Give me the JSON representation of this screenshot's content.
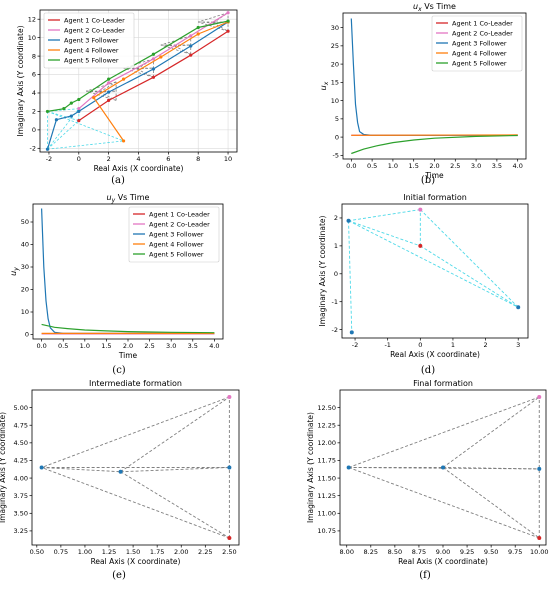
{
  "legend_labels": [
    "Agent 1 Co-Leader",
    "Agent 2 Co-Leader",
    "Agent 3 Follower",
    "Agent 4 Follower",
    "Agent 5 Follower"
  ],
  "colors": {
    "agent1": "#d62728",
    "agent2": "#e377c2",
    "agent3": "#1f77b4",
    "agent4": "#ff7f0e",
    "agent5": "#2ca02c",
    "formation": "#4dd9e8",
    "dash": "#7f7f7f",
    "spine": "#000000"
  },
  "chart_data": [
    {
      "id": "a",
      "caption": "(a)",
      "type": "line",
      "title": "",
      "xlabel": "Real Axis (X coordinate)",
      "ylabel": "Imaginary Axis (Y coordinate)",
      "xlim": [
        -2.6,
        10.6
      ],
      "ylim": [
        -2.4,
        13
      ],
      "xticks": [
        -2,
        0,
        2,
        4,
        6,
        8,
        10
      ],
      "yticks": [
        -2,
        0,
        2,
        4,
        6,
        8,
        10,
        12
      ],
      "grid": true,
      "legend_position": "top-left",
      "series": [
        {
          "name": "Agent 1 Co-Leader",
          "color_key": "agent1",
          "points": [
            [
              0,
              1
            ],
            [
              2,
              3.2
            ],
            [
              5,
              5.7
            ],
            [
              7.5,
              8.1
            ],
            [
              10,
              10.7
            ]
          ]
        },
        {
          "name": "Agent 2 Co-Leader",
          "color_key": "agent2",
          "points": [
            [
              0,
              2.3
            ],
            [
              2,
              5.1
            ],
            [
              5,
              7.7
            ],
            [
              7.5,
              10.2
            ],
            [
              10,
              12.7
            ]
          ]
        },
        {
          "name": "Agent 3 Follower",
          "color_key": "agent3",
          "points": [
            [
              -2.1,
              -2.1
            ],
            [
              -1.5,
              1.1
            ],
            [
              -0.5,
              1.5
            ],
            [
              0,
              2
            ],
            [
              2,
              4.1
            ],
            [
              5,
              6.6
            ],
            [
              7.5,
              9.1
            ],
            [
              10,
              11.7
            ]
          ]
        },
        {
          "name": "Agent 4 Follower",
          "color_key": "agent4",
          "points": [
            [
              3,
              -1.2
            ],
            [
              1,
              3.5
            ],
            [
              3,
              5.5
            ],
            [
              5.5,
              7.9
            ],
            [
              8,
              10.4
            ],
            [
              10,
              11.7
            ]
          ]
        },
        {
          "name": "Agent 5 Follower",
          "color_key": "agent5",
          "points": [
            [
              -2.1,
              2
            ],
            [
              -1,
              2.3
            ],
            [
              -0.5,
              2.9
            ],
            [
              0,
              3.3
            ],
            [
              2,
              5.5
            ],
            [
              5,
              8.2
            ],
            [
              8,
              11.1
            ],
            [
              10,
              11.8
            ]
          ]
        }
      ],
      "formations": [
        {
          "style": "cyan",
          "points": [
            [
              0,
              1
            ],
            [
              0,
              2.3
            ],
            [
              -2.1,
              2
            ],
            [
              -2.1,
              -2.1
            ],
            [
              3,
              -1.2
            ]
          ]
        },
        {
          "style": "dash",
          "points": [
            [
              2.5,
              3.2
            ],
            [
              2.5,
              5.2
            ],
            [
              0.5,
              4.2
            ],
            [
              1.4,
              4.1
            ],
            [
              2.5,
              4.2
            ]
          ]
        },
        {
          "style": "dash",
          "points": [
            [
              5,
              5.7
            ],
            [
              5,
              7.7
            ],
            [
              3,
              6.7
            ],
            [
              3.9,
              6.6
            ],
            [
              5,
              6.7
            ]
          ]
        },
        {
          "style": "dash",
          "points": [
            [
              7.5,
              8.2
            ],
            [
              7.5,
              10.2
            ],
            [
              5.5,
              9.2
            ],
            [
              6.4,
              9.1
            ],
            [
              7.5,
              9.2
            ]
          ]
        },
        {
          "style": "dash",
          "points": [
            [
              10,
              10.7
            ],
            [
              10,
              12.7
            ],
            [
              8,
              11.7
            ],
            [
              9,
              11.6
            ],
            [
              10,
              11.7
            ]
          ]
        }
      ]
    },
    {
      "id": "b",
      "caption": "(b)",
      "type": "line",
      "title": "ux Vs Time",
      "title_main": "u",
      "title_sub": "x",
      "title_rest": " Vs Time",
      "ylabel_main": "u",
      "ylabel_sub": "x",
      "xlabel": "Time",
      "ylabel": "ux",
      "xlim": [
        -0.2,
        4.2
      ],
      "ylim": [
        -6,
        34
      ],
      "xticks": [
        0.0,
        0.5,
        1.0,
        1.5,
        2.0,
        2.5,
        3.0,
        3.5,
        4.0
      ],
      "yticks": [
        -5,
        0,
        5,
        10,
        15,
        20,
        25,
        30
      ],
      "grid": false,
      "legend_position": "top-right",
      "series": [
        {
          "name": "Agent 1 Co-Leader",
          "color_key": "agent1",
          "points": [
            [
              0,
              0.5
            ],
            [
              4,
              0.5
            ]
          ]
        },
        {
          "name": "Agent 2 Co-Leader",
          "color_key": "agent2",
          "points": [
            [
              0,
              0.5
            ],
            [
              4,
              0.5
            ]
          ]
        },
        {
          "name": "Agent 3 Follower",
          "color_key": "agent3",
          "points": [
            [
              0,
              32.5
            ],
            [
              0.05,
              20
            ],
            [
              0.1,
              9
            ],
            [
              0.15,
              4
            ],
            [
              0.2,
              1.5
            ],
            [
              0.3,
              0.7
            ],
            [
              0.5,
              0.5
            ],
            [
              4,
              0.5
            ]
          ]
        },
        {
          "name": "Agent 4 Follower",
          "color_key": "agent4",
          "points": [
            [
              0,
              0.5
            ],
            [
              4,
              0.6
            ]
          ]
        },
        {
          "name": "Agent 5 Follower",
          "color_key": "agent5",
          "points": [
            [
              0,
              -4.5
            ],
            [
              0.3,
              -3.3
            ],
            [
              0.6,
              -2.4
            ],
            [
              1,
              -1.5
            ],
            [
              1.5,
              -0.8
            ],
            [
              2,
              -0.3
            ],
            [
              3,
              0.2
            ],
            [
              4,
              0.45
            ]
          ]
        }
      ]
    },
    {
      "id": "c",
      "caption": "(c)",
      "type": "line",
      "title": "uy Vs Time",
      "title_main": "u",
      "title_sub": "y",
      "title_rest": " Vs Time",
      "ylabel_main": "u",
      "ylabel_sub": "y",
      "xlabel": "Time",
      "ylabel": "uy",
      "xlim": [
        -0.2,
        4.2
      ],
      "ylim": [
        -2,
        58
      ],
      "xticks": [
        0.0,
        0.5,
        1.0,
        1.5,
        2.0,
        2.5,
        3.0,
        3.5,
        4.0
      ],
      "yticks": [
        0,
        10,
        20,
        30,
        40,
        50
      ],
      "grid": false,
      "legend_position": "top-right",
      "series": [
        {
          "name": "Agent 1 Co-Leader",
          "color_key": "agent1",
          "points": [
            [
              0,
              0.3
            ],
            [
              4,
              0.3
            ]
          ]
        },
        {
          "name": "Agent 2 Co-Leader",
          "color_key": "agent2",
          "points": [
            [
              0,
              0.3
            ],
            [
              4,
              0.3
            ]
          ]
        },
        {
          "name": "Agent 3 Follower",
          "color_key": "agent3",
          "points": [
            [
              0,
              56
            ],
            [
              0.05,
              30
            ],
            [
              0.1,
              15
            ],
            [
              0.15,
              7
            ],
            [
              0.2,
              3
            ],
            [
              0.3,
              1
            ],
            [
              0.5,
              0.5
            ],
            [
              4,
              0.5
            ]
          ]
        },
        {
          "name": "Agent 4 Follower",
          "color_key": "agent4",
          "points": [
            [
              0,
              0.5
            ],
            [
              4,
              0.5
            ]
          ]
        },
        {
          "name": "Agent 5 Follower",
          "color_key": "agent5",
          "points": [
            [
              0,
              4.5
            ],
            [
              0.3,
              3.2
            ],
            [
              0.6,
              2.6
            ],
            [
              1,
              2
            ],
            [
              1.5,
              1.6
            ],
            [
              2,
              1.3
            ],
            [
              3,
              1
            ],
            [
              4,
              0.8
            ]
          ]
        }
      ]
    },
    {
      "id": "d",
      "caption": "(d)",
      "type": "scatter",
      "title": "Initial formation",
      "xlabel": "Real Axis (X coordinate)",
      "ylabel": "Imaginary Axis (Y coordinate)",
      "xlim": [
        -2.4,
        3.3
      ],
      "ylim": [
        -2.3,
        2.5
      ],
      "xticks": [
        -2,
        -1,
        0,
        1,
        2,
        3
      ],
      "yticks": [
        -2,
        -1,
        0,
        1,
        2
      ],
      "grid": false,
      "edge_style": "cyan",
      "nodes": [
        {
          "x": 0,
          "y": 1,
          "color_key": "agent1"
        },
        {
          "x": 0,
          "y": 2.3,
          "color_key": "agent2"
        },
        {
          "x": -2.1,
          "y": -2.1,
          "color_key": "agent3"
        },
        {
          "x": 3,
          "y": -1.2,
          "color_key": "agent3"
        },
        {
          "x": -2.2,
          "y": 1.9,
          "color_key": "agent3"
        }
      ],
      "edges": [
        [
          0,
          1
        ],
        [
          1,
          4
        ],
        [
          4,
          0
        ],
        [
          4,
          2
        ],
        [
          4,
          3
        ],
        [
          1,
          3
        ],
        [
          0,
          3
        ]
      ]
    },
    {
      "id": "e",
      "caption": "(e)",
      "type": "scatter",
      "title": "Intermediate formation",
      "xlabel": "Real Axis (X coordinate)",
      "ylabel": "Imaginary Axis (Y coordinate)",
      "xlim": [
        0.45,
        2.6
      ],
      "ylim": [
        3.05,
        5.25
      ],
      "xticks": [
        0.5,
        0.75,
        1.0,
        1.25,
        1.5,
        1.75,
        2.0,
        2.25,
        2.5
      ],
      "xtick_labels": [
        "0.50",
        "0.75",
        "1.00",
        "1.25",
        "1.50",
        "1.75",
        "2.00",
        "2.25",
        "2.50"
      ],
      "yticks": [
        3.25,
        3.5,
        3.75,
        4.0,
        4.25,
        4.5,
        4.75,
        5.0
      ],
      "ytick_labels": [
        "3.25",
        "3.50",
        "3.75",
        "4.00",
        "4.25",
        "4.50",
        "4.75",
        "5.00"
      ],
      "grid": false,
      "edge_style": "dash",
      "nodes": [
        {
          "x": 2.5,
          "y": 3.15,
          "color_key": "agent1"
        },
        {
          "x": 2.5,
          "y": 5.15,
          "color_key": "agent2"
        },
        {
          "x": 0.55,
          "y": 4.15,
          "color_key": "agent3"
        },
        {
          "x": 1.37,
          "y": 4.09,
          "color_key": "agent3"
        },
        {
          "x": 2.5,
          "y": 4.15,
          "color_key": "agent3"
        }
      ],
      "edges": [
        [
          0,
          1
        ],
        [
          0,
          2
        ],
        [
          1,
          2
        ],
        [
          2,
          3
        ],
        [
          3,
          4
        ],
        [
          3,
          1
        ],
        [
          3,
          0
        ],
        [
          2,
          4
        ]
      ]
    },
    {
      "id": "f",
      "caption": "(f)",
      "type": "scatter",
      "title": "Final formation",
      "xlabel": "Real Axis (X coordinate)",
      "ylabel": "Imaginary Axis (Y coordinate)",
      "xlim": [
        7.93,
        10.07
      ],
      "ylim": [
        10.55,
        12.75
      ],
      "xticks": [
        8.0,
        8.25,
        8.5,
        8.75,
        9.0,
        9.25,
        9.5,
        9.75,
        10.0
      ],
      "xtick_labels": [
        "8.00",
        "8.25",
        "8.50",
        "8.75",
        "9.00",
        "9.25",
        "9.50",
        "9.75",
        "10.00"
      ],
      "yticks": [
        10.75,
        11.0,
        11.25,
        11.5,
        11.75,
        12.0,
        12.25,
        12.5
      ],
      "ytick_labels": [
        "10.75",
        "11.00",
        "11.25",
        "11.50",
        "11.75",
        "12.00",
        "12.25",
        "12.50"
      ],
      "grid": false,
      "edge_style": "dash",
      "nodes": [
        {
          "x": 10,
          "y": 10.65,
          "color_key": "agent1"
        },
        {
          "x": 10,
          "y": 12.65,
          "color_key": "agent2"
        },
        {
          "x": 8.02,
          "y": 11.65,
          "color_key": "agent3"
        },
        {
          "x": 9.0,
          "y": 11.65,
          "color_key": "agent3"
        },
        {
          "x": 10,
          "y": 11.63,
          "color_key": "agent3"
        }
      ],
      "edges": [
        [
          0,
          1
        ],
        [
          0,
          2
        ],
        [
          1,
          2
        ],
        [
          2,
          3
        ],
        [
          3,
          4
        ],
        [
          3,
          1
        ],
        [
          3,
          0
        ],
        [
          2,
          4
        ]
      ]
    }
  ]
}
